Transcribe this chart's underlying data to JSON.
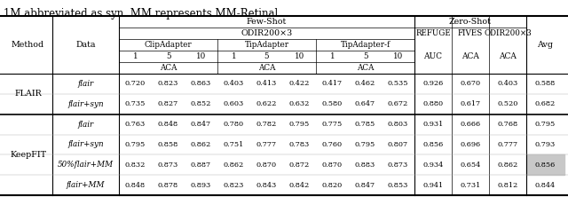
{
  "title_text": "1M abbreviated as syn. MM represents MM-Retinal.",
  "rows": [
    {
      "method": "FLAIR",
      "data": "flair",
      "values": [
        "0.720",
        "0.823",
        "0.863",
        "0.403",
        "0.413",
        "0.422",
        "0.417",
        "0.462",
        "0.535",
        "0.926",
        "0.670",
        "0.403",
        "0.588"
      ],
      "highlight": false
    },
    {
      "method": "FLAIR",
      "data": "flair+syn",
      "values": [
        "0.735",
        "0.827",
        "0.852",
        "0.603",
        "0.622",
        "0.632",
        "0.580",
        "0.647",
        "0.672",
        "0.880",
        "0.617",
        "0.520",
        "0.682"
      ],
      "highlight": false
    },
    {
      "method": "KeepFIT",
      "data": "flair",
      "values": [
        "0.763",
        "0.848",
        "0.847",
        "0.780",
        "0.782",
        "0.795",
        "0.775",
        "0.785",
        "0.803",
        "0.931",
        "0.666",
        "0.768",
        "0.795"
      ],
      "highlight": false
    },
    {
      "method": "KeepFIT",
      "data": "flair+syn",
      "values": [
        "0.795",
        "0.858",
        "0.862",
        "0.751",
        "0.777",
        "0.783",
        "0.760",
        "0.795",
        "0.807",
        "0.856",
        "0.696",
        "0.777",
        "0.793"
      ],
      "highlight": false
    },
    {
      "method": "KeepFIT",
      "data": "50%flair+MM",
      "values": [
        "0.832",
        "0.873",
        "0.887",
        "0.862",
        "0.870",
        "0.872",
        "0.870",
        "0.883",
        "0.873",
        "0.934",
        "0.654",
        "0.862",
        "0.856"
      ],
      "highlight": true
    },
    {
      "method": "KeepFIT",
      "data": "flair+MM",
      "values": [
        "0.848",
        "0.878",
        "0.893",
        "0.823",
        "0.843",
        "0.842",
        "0.820",
        "0.847",
        "0.853",
        "0.941",
        "0.731",
        "0.812",
        "0.844"
      ],
      "highlight": false
    }
  ]
}
